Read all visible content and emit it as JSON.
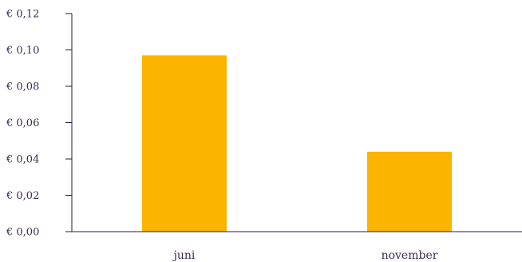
{
  "chart_data": {
    "type": "bar",
    "categories": [
      "juni",
      "november"
    ],
    "values": [
      0.097,
      0.044
    ],
    "ylim": [
      0,
      0.12
    ],
    "yticks": [
      0,
      0.02,
      0.04,
      0.06,
      0.08,
      0.1,
      0.12
    ],
    "ytick_labels": [
      "€ 0,00",
      "€ 0,02",
      "€ 0,04",
      "€ 0,06",
      "€ 0,08",
      "€ 0,10",
      "€ 0,12"
    ],
    "grid": false,
    "bar_color": "#fbb400",
    "axis_color": "#2b1a40",
    "text_color": "#3d2a52"
  }
}
